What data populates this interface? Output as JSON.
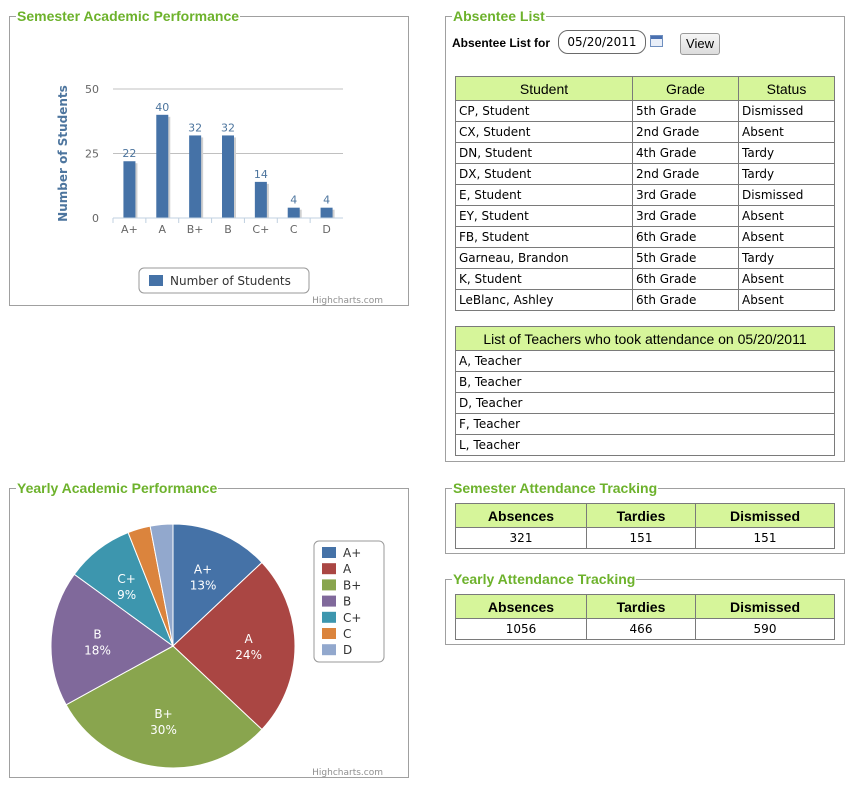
{
  "semester_panel": {
    "title": "Semester Academic Performance",
    "credit": "Highcharts.com",
    "chart_data": {
      "type": "bar",
      "categories": [
        "A+",
        "A",
        "B+",
        "B",
        "C+",
        "C",
        "D"
      ],
      "values": [
        22,
        40,
        32,
        32,
        14,
        4,
        4
      ],
      "ylabel": "Number of Students",
      "yticks": [
        0,
        25,
        50
      ],
      "ylim": [
        0,
        50
      ],
      "grid": true,
      "legend": "bottom-center",
      "series": [
        {
          "name": "Number of Students",
          "values": [
            22,
            40,
            32,
            32,
            14,
            4,
            4
          ]
        }
      ],
      "color": "#4572a7"
    }
  },
  "yearly_panel": {
    "title": "Yearly Academic Performance",
    "credit": "Highcharts.com",
    "chart_data": {
      "type": "pie",
      "categories": [
        "A+",
        "A",
        "B+",
        "B",
        "C+",
        "C",
        "D"
      ],
      "values": [
        13,
        24,
        30,
        18,
        9,
        3,
        3
      ],
      "slice_labels": [
        "A+ 13%",
        "A 24%",
        "B+ 30%",
        "B 18%",
        "C+ 9%",
        "",
        ""
      ],
      "colors": [
        "#4572a7",
        "#aa4643",
        "#89a54e",
        "#80699b",
        "#3d96ae",
        "#db843d",
        "#92a8cd"
      ],
      "legend": "right"
    }
  },
  "absentee": {
    "title": "Absentee List",
    "date_label": "Absentee List for",
    "date_value": "05/20/2011",
    "view_button": "View",
    "columns": [
      "Student",
      "Grade",
      "Status"
    ],
    "rows": [
      [
        "CP, Student",
        "5th Grade",
        "Dismissed"
      ],
      [
        "CX, Student",
        "2nd Grade",
        "Absent"
      ],
      [
        "DN, Student",
        "4th Grade",
        "Tardy"
      ],
      [
        "DX, Student",
        "2nd Grade",
        "Tardy"
      ],
      [
        "E, Student",
        "3rd Grade",
        "Dismissed"
      ],
      [
        "EY, Student",
        "3rd Grade",
        "Absent"
      ],
      [
        "FB, Student",
        "6th Grade",
        "Absent"
      ],
      [
        "Garneau, Brandon",
        "5th Grade",
        "Tardy"
      ],
      [
        "K, Student",
        "6th Grade",
        "Absent"
      ],
      [
        "LeBlanc, Ashley",
        "6th Grade",
        "Absent"
      ]
    ],
    "teachers_header": "List of Teachers who took attendance on 05/20/2011",
    "teachers": [
      "A, Teacher",
      "B, Teacher",
      "D, Teacher",
      "F, Teacher",
      "L, Teacher"
    ]
  },
  "semester_attendance": {
    "title": "Semester Attendance Tracking",
    "columns": [
      "Absences",
      "Tardies",
      "Dismissed"
    ],
    "values": [
      "321",
      "151",
      "151"
    ]
  },
  "yearly_attendance": {
    "title": "Yearly Attendance Tracking",
    "columns": [
      "Absences",
      "Tardies",
      "Dismissed"
    ],
    "values": [
      "1056",
      "466",
      "590"
    ]
  }
}
